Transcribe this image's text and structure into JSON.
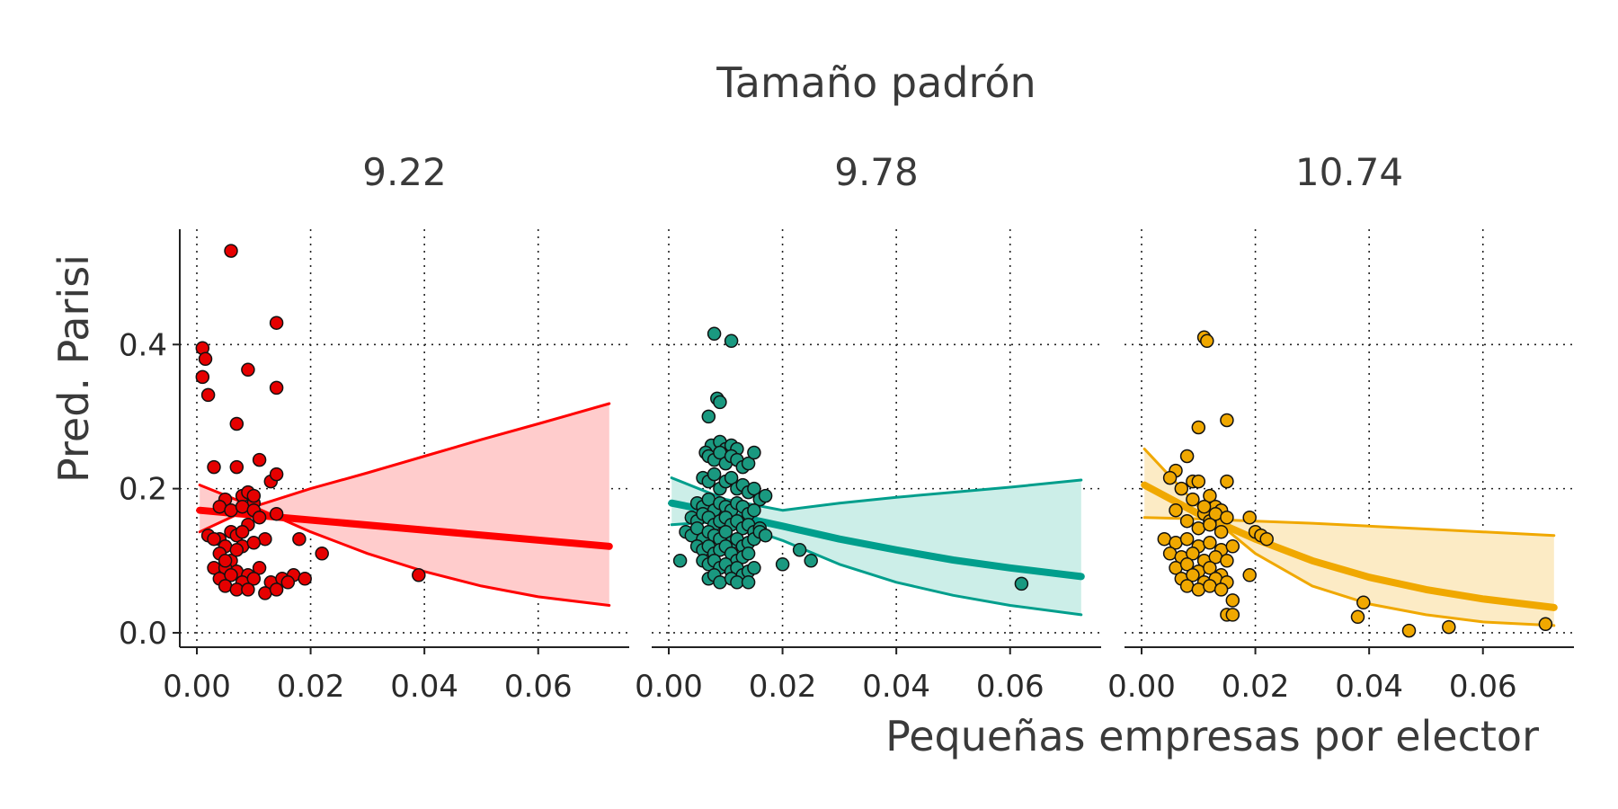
{
  "chart_data": {
    "type": "scatter",
    "title": "Tamaño padrón",
    "xlabel": "Pequeñas empresas por elector",
    "ylabel": "Pred. Parisi",
    "xlim": [
      -0.003,
      0.076
    ],
    "ylim": [
      -0.02,
      0.56
    ],
    "x_ticks": [
      "0.00",
      "0.02",
      "0.04",
      "0.06"
    ],
    "y_ticks": [
      "0.0",
      "0.2",
      "0.4"
    ],
    "grid": "dotted",
    "legend": "none",
    "panels": [
      {
        "label": "9.22",
        "color": "#ff0000",
        "point_fill": "#e60000",
        "band_fill": "#ffcccc",
        "fit": {
          "x": [
            0.0005,
            0.0725
          ],
          "y": [
            0.17,
            0.12
          ]
        },
        "ci_upper": {
          "x": [
            0.0005,
            0.01,
            0.02,
            0.03,
            0.04,
            0.05,
            0.06,
            0.0725
          ],
          "y": [
            0.14,
            0.175,
            0.2,
            0.222,
            0.245,
            0.268,
            0.29,
            0.318
          ]
        },
        "ci_lower": {
          "x": [
            0.0005,
            0.01,
            0.02,
            0.03,
            0.04,
            0.05,
            0.06,
            0.0725
          ],
          "y": [
            0.205,
            0.175,
            0.14,
            0.11,
            0.085,
            0.065,
            0.05,
            0.038
          ]
        },
        "points": {
          "x": [
            0.006,
            0.014,
            0.001,
            0.0015,
            0.001,
            0.009,
            0.007,
            0.014,
            0.002,
            0.011,
            0.003,
            0.013,
            0.014,
            0.007,
            0.008,
            0.009,
            0.01,
            0.005,
            0.004,
            0.006,
            0.002,
            0.004,
            0.008,
            0.01,
            0.003,
            0.005,
            0.006,
            0.007,
            0.009,
            0.011,
            0.012,
            0.004,
            0.008,
            0.01,
            0.018,
            0.022,
            0.006,
            0.003,
            0.005,
            0.007,
            0.009,
            0.011,
            0.004,
            0.006,
            0.008,
            0.01,
            0.013,
            0.015,
            0.017,
            0.019,
            0.005,
            0.007,
            0.009,
            0.012,
            0.014,
            0.016,
            0.005,
            0.007,
            0.008,
            0.039,
            0.014,
            0.01
          ],
          "y": [
            0.53,
            0.43,
            0.395,
            0.38,
            0.355,
            0.365,
            0.29,
            0.34,
            0.33,
            0.24,
            0.23,
            0.21,
            0.22,
            0.23,
            0.19,
            0.195,
            0.18,
            0.185,
            0.175,
            0.17,
            0.135,
            0.13,
            0.175,
            0.17,
            0.13,
            0.12,
            0.14,
            0.135,
            0.15,
            0.16,
            0.13,
            0.11,
            0.12,
            0.125,
            0.13,
            0.11,
            0.1,
            0.09,
            0.09,
            0.085,
            0.08,
            0.09,
            0.075,
            0.08,
            0.07,
            0.075,
            0.07,
            0.075,
            0.08,
            0.075,
            0.065,
            0.06,
            0.06,
            0.055,
            0.06,
            0.07,
            0.1,
            0.115,
            0.14,
            0.08,
            0.165,
            0.19
          ]
        }
      },
      {
        "label": "9.78",
        "color": "#009e8c",
        "point_fill": "#1a9980",
        "band_fill": "#cceee8",
        "fit": {
          "x": [
            0.0005,
            0.01,
            0.02,
            0.03,
            0.04,
            0.05,
            0.06,
            0.0725
          ],
          "y": [
            0.18,
            0.165,
            0.148,
            0.13,
            0.115,
            0.101,
            0.09,
            0.078
          ]
        },
        "ci_upper": {
          "x": [
            0.0005,
            0.01,
            0.02,
            0.03,
            0.04,
            0.05,
            0.06,
            0.0725
          ],
          "y": [
            0.215,
            0.185,
            0.17,
            0.18,
            0.188,
            0.195,
            0.202,
            0.212
          ]
        },
        "ci_lower": {
          "x": [
            0.0005,
            0.01,
            0.02,
            0.03,
            0.04,
            0.05,
            0.06,
            0.0725
          ],
          "y": [
            0.15,
            0.155,
            0.128,
            0.095,
            0.07,
            0.052,
            0.038,
            0.025
          ]
        },
        "points": {
          "x": [
            0.008,
            0.011,
            0.0085,
            0.009,
            0.007,
            0.0075,
            0.009,
            0.01,
            0.011,
            0.012,
            0.0065,
            0.007,
            0.008,
            0.009,
            0.01,
            0.011,
            0.012,
            0.013,
            0.014,
            0.015,
            0.006,
            0.007,
            0.008,
            0.009,
            0.01,
            0.011,
            0.012,
            0.013,
            0.014,
            0.015,
            0.016,
            0.017,
            0.005,
            0.006,
            0.007,
            0.008,
            0.009,
            0.01,
            0.011,
            0.012,
            0.013,
            0.014,
            0.015,
            0.004,
            0.005,
            0.006,
            0.007,
            0.008,
            0.009,
            0.01,
            0.011,
            0.012,
            0.013,
            0.014,
            0.015,
            0.016,
            0.003,
            0.004,
            0.005,
            0.006,
            0.007,
            0.008,
            0.009,
            0.01,
            0.011,
            0.012,
            0.013,
            0.014,
            0.015,
            0.005,
            0.006,
            0.007,
            0.008,
            0.009,
            0.01,
            0.011,
            0.012,
            0.013,
            0.014,
            0.006,
            0.007,
            0.008,
            0.009,
            0.01,
            0.011,
            0.012,
            0.013,
            0.014,
            0.015,
            0.007,
            0.008,
            0.009,
            0.011,
            0.012,
            0.014,
            0.002,
            0.02,
            0.023,
            0.025,
            0.062,
            0.016,
            0.017
          ],
          "y": [
            0.415,
            0.405,
            0.325,
            0.32,
            0.3,
            0.26,
            0.265,
            0.255,
            0.26,
            0.255,
            0.25,
            0.245,
            0.24,
            0.25,
            0.235,
            0.245,
            0.24,
            0.23,
            0.235,
            0.25,
            0.215,
            0.21,
            0.22,
            0.2,
            0.21,
            0.215,
            0.2,
            0.205,
            0.195,
            0.2,
            0.185,
            0.19,
            0.18,
            0.175,
            0.185,
            0.17,
            0.18,
            0.175,
            0.17,
            0.18,
            0.175,
            0.165,
            0.17,
            0.16,
            0.155,
            0.165,
            0.16,
            0.15,
            0.155,
            0.16,
            0.15,
            0.155,
            0.145,
            0.15,
            0.14,
            0.145,
            0.14,
            0.135,
            0.145,
            0.13,
            0.14,
            0.135,
            0.13,
            0.14,
            0.125,
            0.13,
            0.12,
            0.125,
            0.13,
            0.12,
            0.115,
            0.12,
            0.11,
            0.115,
            0.12,
            0.11,
            0.1,
            0.105,
            0.11,
            0.1,
            0.095,
            0.1,
            0.09,
            0.095,
            0.085,
            0.09,
            0.08,
            0.085,
            0.09,
            0.075,
            0.08,
            0.07,
            0.075,
            0.07,
            0.07,
            0.1,
            0.095,
            0.115,
            0.1,
            0.068,
            0.14,
            0.135
          ]
        }
      },
      {
        "label": "10.74",
        "color": "#f0a800",
        "point_fill": "#f0a800",
        "band_fill": "#fcebc5",
        "fit": {
          "x": [
            0.0005,
            0.01,
            0.02,
            0.03,
            0.04,
            0.05,
            0.06,
            0.0725
          ],
          "y": [
            0.205,
            0.165,
            0.13,
            0.1,
            0.077,
            0.06,
            0.047,
            0.035
          ]
        },
        "ci_upper": {
          "x": [
            0.0005,
            0.01,
            0.02,
            0.03,
            0.04,
            0.05,
            0.06,
            0.0725
          ],
          "y": [
            0.16,
            0.158,
            0.155,
            0.152,
            0.148,
            0.144,
            0.14,
            0.135
          ]
        },
        "ci_lower": {
          "x": [
            0.0005,
            0.01,
            0.02,
            0.03,
            0.04,
            0.05,
            0.06,
            0.0725
          ],
          "y": [
            0.255,
            0.175,
            0.11,
            0.065,
            0.04,
            0.025,
            0.015,
            0.01
          ]
        },
        "points": {
          "x": [
            0.011,
            0.0115,
            0.015,
            0.01,
            0.008,
            0.009,
            0.01,
            0.006,
            0.015,
            0.012,
            0.013,
            0.014,
            0.011,
            0.012,
            0.019,
            0.02,
            0.021,
            0.022,
            0.005,
            0.007,
            0.009,
            0.011,
            0.013,
            0.015,
            0.006,
            0.008,
            0.01,
            0.012,
            0.014,
            0.004,
            0.006,
            0.008,
            0.01,
            0.012,
            0.014,
            0.016,
            0.005,
            0.007,
            0.009,
            0.011,
            0.013,
            0.015,
            0.006,
            0.008,
            0.01,
            0.012,
            0.014,
            0.007,
            0.009,
            0.011,
            0.013,
            0.015,
            0.008,
            0.01,
            0.012,
            0.014,
            0.019,
            0.016,
            0.015,
            0.016,
            0.039,
            0.038,
            0.047,
            0.054,
            0.071
          ],
          "y": [
            0.41,
            0.405,
            0.295,
            0.285,
            0.245,
            0.21,
            0.21,
            0.225,
            0.21,
            0.19,
            0.175,
            0.17,
            0.165,
            0.155,
            0.16,
            0.14,
            0.135,
            0.13,
            0.215,
            0.2,
            0.185,
            0.175,
            0.165,
            0.16,
            0.17,
            0.155,
            0.145,
            0.15,
            0.14,
            0.13,
            0.125,
            0.13,
            0.12,
            0.125,
            0.115,
            0.12,
            0.11,
            0.105,
            0.11,
            0.1,
            0.105,
            0.1,
            0.09,
            0.095,
            0.085,
            0.09,
            0.08,
            0.075,
            0.08,
            0.07,
            0.075,
            0.07,
            0.065,
            0.06,
            0.065,
            0.06,
            0.08,
            0.045,
            0.025,
            0.025,
            0.042,
            0.022,
            0.003,
            0.008,
            0.012
          ]
        }
      }
    ]
  }
}
